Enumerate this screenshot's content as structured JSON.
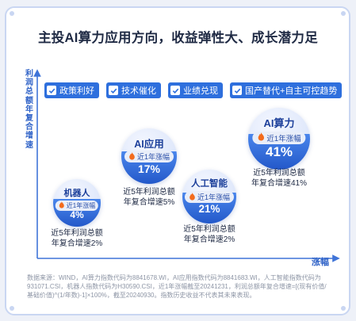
{
  "title": "主投AI算力应用方向，收益弹性大、成长潜力足",
  "axis": {
    "y_label": "利润总额年复合增速",
    "x_label": "涨幅"
  },
  "tags": [
    {
      "label": "政策利好"
    },
    {
      "label": "技术催化"
    },
    {
      "label": "业绩兑现"
    },
    {
      "label": "国产替代+自主可控趋势"
    }
  ],
  "bubbles": [
    {
      "name": "机器人",
      "pill_label": "近1年涨幅",
      "gain": "4%",
      "desc_line1": "近5年利润总额",
      "desc_line2": "年复合增速2%",
      "gain_value": 4,
      "profit_cagr": 2
    },
    {
      "name": "AI应用",
      "pill_label": "近1年涨幅",
      "gain": "17%",
      "desc_line1": "近5年利润总额",
      "desc_line2": "年复合增速5%",
      "gain_value": 17,
      "profit_cagr": 5
    },
    {
      "name": "人工智能",
      "pill_label": "近1年涨幅",
      "gain": "21%",
      "desc_line1": "近5年利润总额",
      "desc_line2": "年复合增速2%",
      "gain_value": 21,
      "profit_cagr": 2
    },
    {
      "name": "AI算力",
      "pill_label": "近1年涨幅",
      "gain": "41%",
      "desc_line1": "近5年利润总额",
      "desc_line2": "年复合增速41%",
      "gain_value": 41,
      "profit_cagr": 41
    }
  ],
  "footnote": "数据来源：WIND，AI算力指数代码为8841678.WI，AI应用指数代码为8841683.WI，人工智能指数代码为931071.CSI，机器人指数代码为H30590.CSI，近1年涨幅截至20241231，利润总额年复合增速=[(现有价值/基础价值)^(1/年数)-1]×100%，截至20240930。指数历史收益不代表其未来表现。",
  "colors": {
    "accent": "#2e6fdd",
    "title": "#1f2a44",
    "bubble_fill": "#2358c9",
    "footnote": "#8d95a5"
  }
}
